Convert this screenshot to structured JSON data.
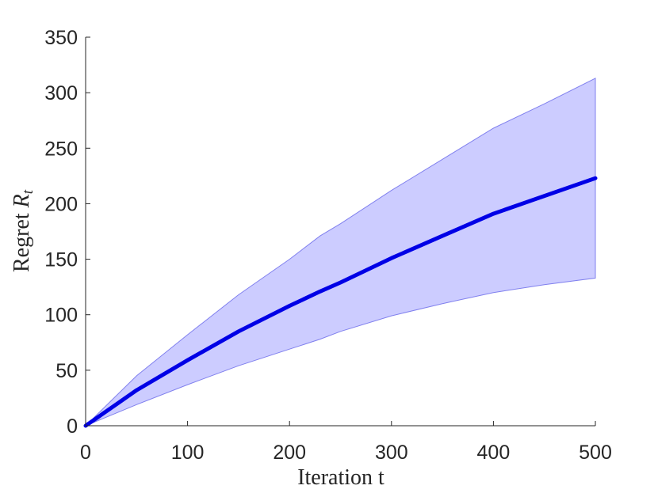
{
  "chart_data": {
    "type": "line",
    "xlabel": "Iteration t",
    "ylabel_prefix": "Regret ",
    "ylabel_symbol": "R",
    "ylabel_subscript": "t",
    "xlim": [
      0,
      500
    ],
    "ylim": [
      0,
      350
    ],
    "xticks": [
      0,
      100,
      200,
      300,
      400,
      500
    ],
    "yticks": [
      0,
      50,
      100,
      150,
      200,
      250,
      300,
      350
    ],
    "grid": false,
    "line_color": "#0000e6",
    "band_color": "#ccccff",
    "band_edge_color": "#8080ee",
    "series": [
      {
        "x": [
          0,
          50,
          100,
          150,
          200,
          230,
          250,
          300,
          350,
          400,
          450,
          500
        ],
        "mean": [
          0,
          32,
          59,
          85,
          108,
          121,
          129,
          151,
          171,
          191,
          207,
          223
        ],
        "upper": [
          0,
          45,
          82,
          118,
          150,
          171,
          182,
          212,
          240,
          268,
          290,
          313
        ],
        "lower": [
          0,
          19,
          37,
          54,
          69,
          78,
          85,
          99,
          110,
          120,
          127,
          133
        ]
      }
    ]
  }
}
